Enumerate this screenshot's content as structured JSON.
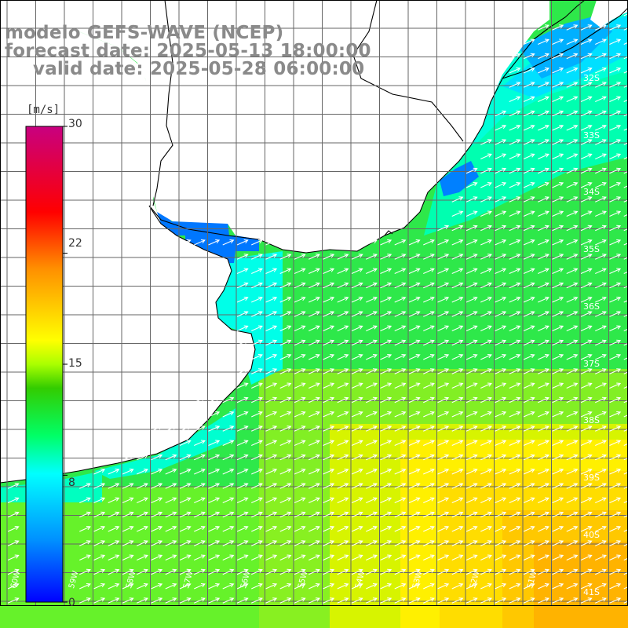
{
  "title": {
    "model": "modelo GEFS-WAVE (NCEP)",
    "forecast": "forecast date: 2025-05-13 18:00:00",
    "valid": "valid date: 2025-05-28 06:00:00"
  },
  "colorbar": {
    "unit": "[m/s]",
    "ticks": [
      "30",
      "22",
      "15",
      "8",
      "0"
    ],
    "tick_values": [
      30,
      22,
      15,
      8,
      0
    ],
    "range": [
      0,
      30
    ],
    "colors": [
      "#0000ff",
      "#00a0ff",
      "#00ffff",
      "#00ff40",
      "#33cc00",
      "#ffff00",
      "#ff8000",
      "#ff0000",
      "#cc0080"
    ]
  },
  "map": {
    "lat_labels": [
      "32S",
      "33S",
      "34S",
      "35S",
      "36S",
      "37S",
      "38S",
      "39S",
      "40S",
      "41S"
    ],
    "lon_labels": [
      "60W",
      "59W",
      "58W",
      "57W",
      "56W",
      "55W",
      "54W",
      "53W",
      "52W",
      "51W"
    ],
    "extent": {
      "lon": [
        -61,
        -50
      ],
      "lat": [
        -41.3,
        -31
      ]
    },
    "wind_direction": "towards northeast",
    "land_color": "#ffffff",
    "grid_color": "#666666",
    "coast_color": "#000000",
    "arrow_color": "#ffffff"
  }
}
